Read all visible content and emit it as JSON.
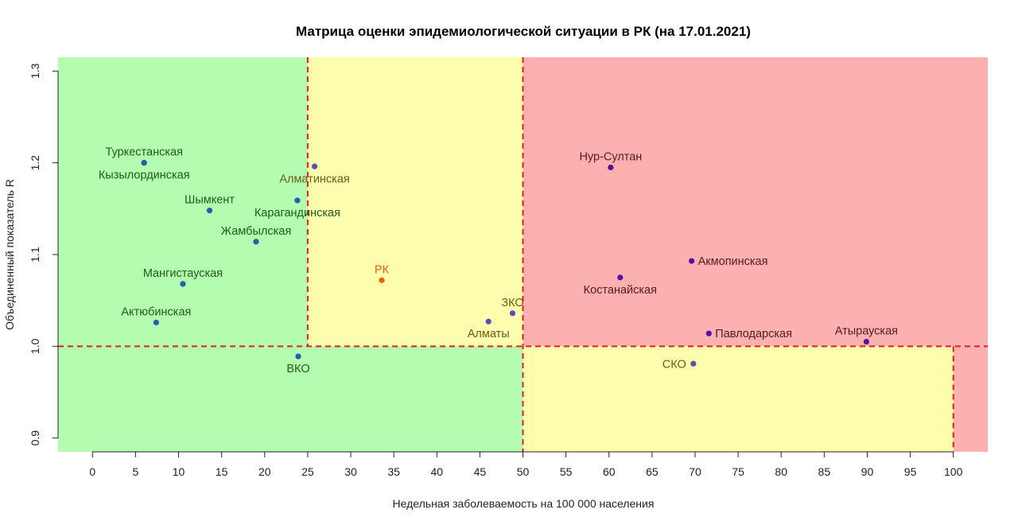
{
  "chart_data": {
    "type": "scatter",
    "title": "Матрица оценки эпидемиологической ситуации в РК (на 17.01.2021)",
    "xlabel": "Недельная заболеваемость на 100 000 населения",
    "ylabel": "Объединенный показатель R",
    "xlim": [
      -4,
      104
    ],
    "ylim": [
      0.885,
      1.315
    ],
    "xticks": [
      0,
      5,
      10,
      15,
      20,
      25,
      30,
      35,
      40,
      45,
      50,
      55,
      60,
      65,
      70,
      75,
      80,
      85,
      90,
      95,
      100
    ],
    "yticks": [
      0.9,
      1.0,
      1.1,
      1.2,
      1.3
    ],
    "ytick_labels": [
      "0.9",
      "1.0",
      "1.1",
      "1.2",
      "1.3"
    ],
    "zones": {
      "green": "#b3fcb0",
      "yellow": "#fdfdae",
      "red": "#fdb0b0",
      "threshold_line": "#e0201a"
    },
    "thresholds": {
      "x_low": 25,
      "x_high": 50,
      "x_max": 100,
      "y": 1.0
    },
    "points": [
      {
        "name": "Туркестанская",
        "x": 6.0,
        "y": 1.2,
        "color": "#1f5fb5",
        "label_color": "#1f5c1f",
        "label_pos": "above"
      },
      {
        "name": "Кызылординская",
        "x": 6.0,
        "y": 1.2,
        "color": "#1f5fb5",
        "label_color": "#1f5c1f",
        "label_pos": "below"
      },
      {
        "name": "Шымкент",
        "x": 13.6,
        "y": 1.148,
        "color": "#1f5fb5",
        "label_color": "#1f5c1f",
        "label_pos": "above"
      },
      {
        "name": "Жамбылская",
        "x": 19.0,
        "y": 1.114,
        "color": "#1f5fb5",
        "label_color": "#1f5c1f",
        "label_pos": "above"
      },
      {
        "name": "Мангистауская",
        "x": 10.5,
        "y": 1.068,
        "color": "#1f5fb5",
        "label_color": "#1f5c1f",
        "label_pos": "above"
      },
      {
        "name": "Актюбинская",
        "x": 7.4,
        "y": 1.026,
        "color": "#1f5fb5",
        "label_color": "#1f5c1f",
        "label_pos": "above"
      },
      {
        "name": "Карагандинская",
        "x": 23.8,
        "y": 1.159,
        "color": "#1f5fb5",
        "label_color": "#1f5c1f",
        "label_pos": "below"
      },
      {
        "name": "Алматинская",
        "x": 25.8,
        "y": 1.196,
        "color": "#5c4fb0",
        "label_color": "#6e5c16",
        "label_pos": "below"
      },
      {
        "name": "ВКО",
        "x": 23.9,
        "y": 0.989,
        "color": "#1f5fb5",
        "label_color": "#1f5c1f",
        "label_pos": "below"
      },
      {
        "name": "РК",
        "x": 33.6,
        "y": 1.072,
        "color": "#e8600c",
        "label_color": "#e8600c",
        "label_pos": "above"
      },
      {
        "name": "ЗКО",
        "x": 48.8,
        "y": 1.036,
        "color": "#5c4fb0",
        "label_color": "#6e5c16",
        "label_pos": "above"
      },
      {
        "name": "Алматы",
        "x": 46.0,
        "y": 1.027,
        "color": "#5c4fb0",
        "label_color": "#6e5c16",
        "label_pos": "below"
      },
      {
        "name": "Нур-Султан",
        "x": 60.2,
        "y": 1.195,
        "color": "#5a0fa0",
        "label_color": "#5a1a1a",
        "label_pos": "above"
      },
      {
        "name": "Акмопинская",
        "x": 69.6,
        "y": 1.093,
        "color": "#5a0fa0",
        "label_color": "#5a1a1a",
        "label_pos": "right"
      },
      {
        "name": "Костанайская",
        "x": 61.3,
        "y": 1.075,
        "color": "#5a0fa0",
        "label_color": "#5a1a1a",
        "label_pos": "below"
      },
      {
        "name": "Павлодарская",
        "x": 71.6,
        "y": 1.014,
        "color": "#5a0fa0",
        "label_color": "#5a1a1a",
        "label_pos": "right"
      },
      {
        "name": "Атырауская",
        "x": 89.9,
        "y": 1.005,
        "color": "#5a0fa0",
        "label_color": "#5a1a1a",
        "label_pos": "above"
      },
      {
        "name": "СКО",
        "x": 69.8,
        "y": 0.981,
        "color": "#5c4fb0",
        "label_color": "#6e5c16",
        "label_pos": "left"
      }
    ]
  }
}
